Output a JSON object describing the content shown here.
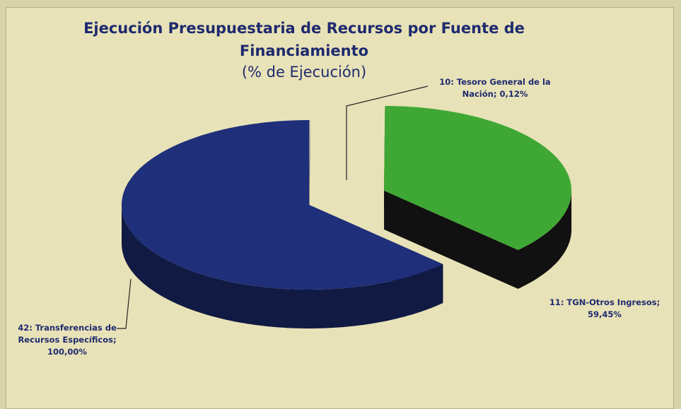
{
  "chart_data": {
    "type": "pie3d",
    "title": "Ejecución Presupuestaria de Recursos por Fuente de Financiamiento",
    "subtitle": "(% de Ejecución)",
    "categories": [
      "10: Tesoro General de la Nación;",
      "11: TGN-Otros Ingresos;",
      "42: Transferencias de Recursos Específicos;"
    ],
    "values": [
      0.12,
      59.45,
      100.0
    ],
    "value_labels": [
      "0,12%",
      "59,45%",
      "100,00%"
    ],
    "colors": [
      "#8a8a8a",
      "#3fa834",
      "#1f2f7a"
    ]
  }
}
